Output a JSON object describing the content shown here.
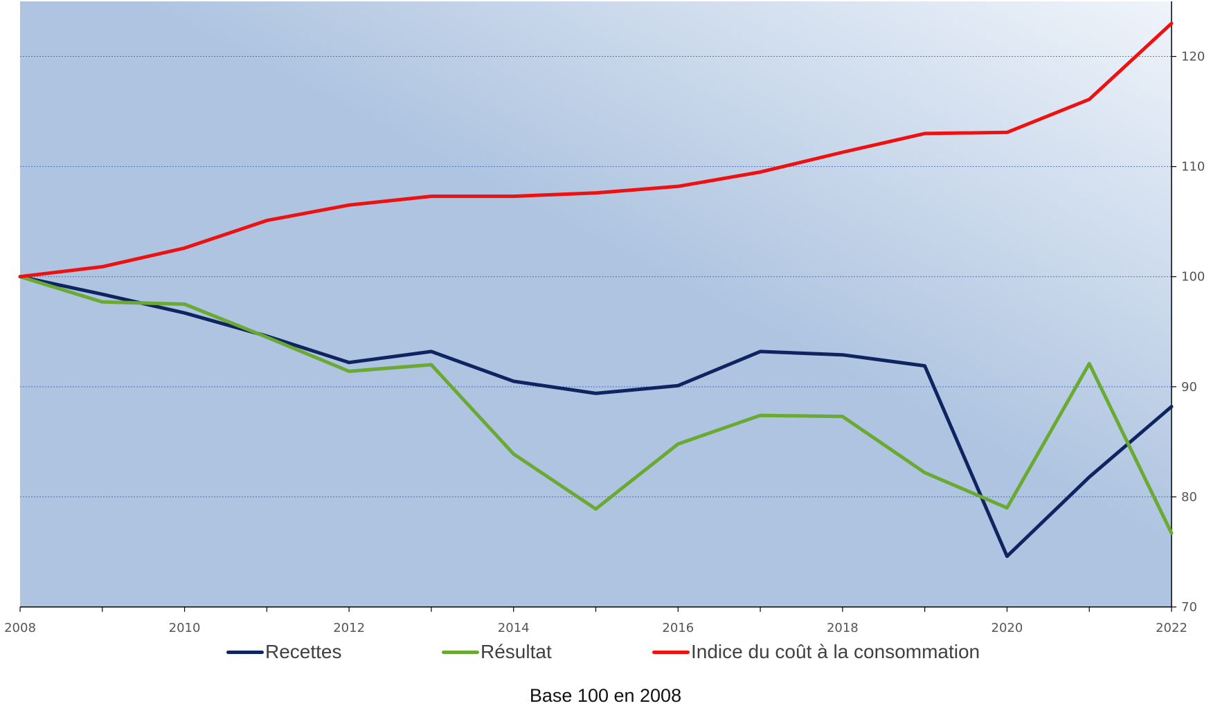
{
  "chart_data": {
    "type": "line",
    "x": [
      2008,
      2009,
      2010,
      2011,
      2012,
      2013,
      2014,
      2015,
      2016,
      2017,
      2018,
      2019,
      2020,
      2021,
      2022
    ],
    "x_tick_labels": [
      "2008",
      "2010",
      "2012",
      "2014",
      "2016",
      "2018",
      "2020",
      "2022"
    ],
    "x_tick_values": [
      2008,
      2010,
      2012,
      2014,
      2016,
      2018,
      2020,
      2022
    ],
    "y_tick_labels": [
      "70",
      "80",
      "90",
      "100",
      "110",
      "120"
    ],
    "y_tick_values": [
      70,
      80,
      90,
      100,
      110,
      120
    ],
    "ylim": [
      70,
      125
    ],
    "xlim": [
      2008,
      2022
    ],
    "y_axis_side": "right",
    "grid": "horizontal dotted",
    "legend_position": "bottom",
    "series": [
      {
        "name": "Recettes",
        "color": "#0f2460",
        "values": [
          100,
          98.4,
          96.7,
          94.6,
          92.2,
          93.2,
          90.5,
          89.4,
          90.1,
          93.2,
          92.9,
          91.9,
          74.6,
          81.8,
          88.2
        ]
      },
      {
        "name": "Résultat",
        "color": "#6aaa32",
        "values": [
          100,
          97.7,
          97.5,
          94.5,
          91.4,
          92.0,
          83.9,
          78.9,
          84.8,
          87.4,
          87.3,
          82.2,
          79.0,
          92.1,
          76.7
        ]
      },
      {
        "name": "Indice du coût à la consommation",
        "color": "#ee1111",
        "values": [
          100,
          100.9,
          102.6,
          105.1,
          106.5,
          107.3,
          107.3,
          107.6,
          108.2,
          109.5,
          111.3,
          113.0,
          113.1,
          116.1,
          123.0
        ]
      }
    ],
    "footnote": "Base 100 en 2008"
  },
  "colors": {
    "background_start": "#aec4e0",
    "background_end": "#eff4fa",
    "grid": "#3c5fbf",
    "axis": "#000000"
  }
}
